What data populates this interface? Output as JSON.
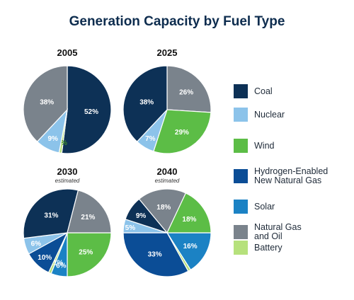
{
  "title": "Generation Capacity by Fuel Type",
  "colors": {
    "Coal": "#0d3156",
    "Nuclear": "#8cc3ea",
    "Wind": "#5cbd46",
    "Hydrogen-Enabled New Natural Gas": "#0b4d96",
    "Solar": "#1b82c4",
    "Natural Gas and Oil": "#7a838c",
    "Battery": "#b6e17c"
  },
  "legend": [
    {
      "key": "Coal",
      "lines": [
        "Coal"
      ]
    },
    {
      "key": "Nuclear",
      "lines": [
        "Nuclear"
      ]
    },
    {
      "key": "Wind",
      "lines": [
        "Wind"
      ]
    },
    {
      "key": "Hydrogen-Enabled New Natural Gas",
      "lines": [
        "Hydrogen-Enabled",
        "New Natural Gas"
      ]
    },
    {
      "key": "Solar",
      "lines": [
        "Solar"
      ]
    },
    {
      "key": "Natural Gas and Oil",
      "lines": [
        "Natural Gas",
        "and Oil"
      ]
    },
    {
      "key": "Battery",
      "lines": [
        "Battery"
      ]
    }
  ],
  "chart_data": [
    {
      "type": "pie",
      "title": "2005",
      "subtitle": "",
      "slices": [
        {
          "category": "Coal",
          "value": 52,
          "label": "52%"
        },
        {
          "category": "Battery",
          "value": 1,
          "label": "1%"
        },
        {
          "category": "Nuclear",
          "value": 9,
          "label": "9%"
        },
        {
          "category": "Natural Gas and Oil",
          "value": 38,
          "label": "38%"
        }
      ]
    },
    {
      "type": "pie",
      "title": "2025",
      "subtitle": "",
      "slices": [
        {
          "category": "Natural Gas and Oil",
          "value": 26,
          "label": "26%"
        },
        {
          "category": "Wind",
          "value": 29,
          "label": "29%"
        },
        {
          "category": "Nuclear",
          "value": 7,
          "label": "7%"
        },
        {
          "category": "Coal",
          "value": 38,
          "label": "38%"
        }
      ]
    },
    {
      "type": "pie",
      "title": "2030",
      "subtitle": "estimated",
      "slices": [
        {
          "category": "Wind",
          "value": 25,
          "label": "25%"
        },
        {
          "category": "Solar",
          "value": 6,
          "label": "6%"
        },
        {
          "category": "Battery",
          "value": 1,
          "label": "1%"
        },
        {
          "category": "Hydrogen-Enabled New Natural Gas",
          "value": 10,
          "label": "10%"
        },
        {
          "category": "Nuclear",
          "value": 6,
          "label": "6%"
        },
        {
          "category": "Coal",
          "value": 31,
          "label": "31%"
        },
        {
          "category": "Natural Gas and Oil",
          "value": 21,
          "label": "21%"
        }
      ]
    },
    {
      "type": "pie",
      "title": "2040",
      "subtitle": "estimated",
      "slices": [
        {
          "category": "Solar",
          "value": 16,
          "label": "16%"
        },
        {
          "category": "Battery",
          "value": 1,
          "label": "1%"
        },
        {
          "category": "Hydrogen-Enabled New Natural Gas",
          "value": 33,
          "label": "33%"
        },
        {
          "category": "Nuclear",
          "value": 5,
          "label": "5%"
        },
        {
          "category": "Coal",
          "value": 9,
          "label": "9%"
        },
        {
          "category": "Natural Gas and Oil",
          "value": 18,
          "label": "18%"
        },
        {
          "category": "Wind",
          "value": 18,
          "label": "18%"
        }
      ]
    }
  ]
}
